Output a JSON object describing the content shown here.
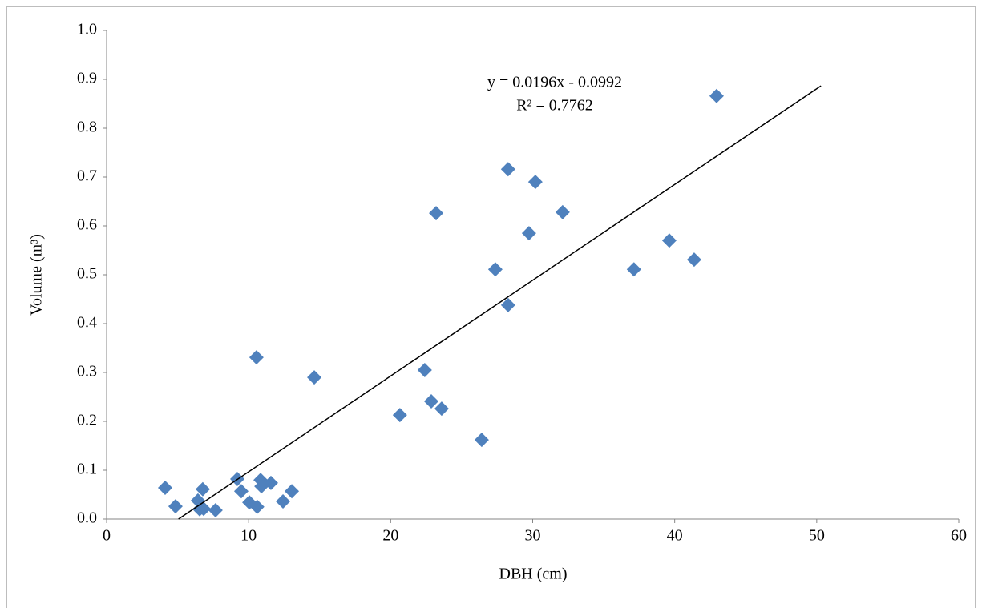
{
  "chart_data": {
    "type": "scatter",
    "xlabel": "DBH (cm)",
    "ylabel": "Volume (m³)",
    "xlim": [
      0,
      60
    ],
    "xticks": [
      0,
      10,
      20,
      30,
      40,
      50,
      60
    ],
    "ylim": [
      0,
      1
    ],
    "yticks": [
      {
        "value": 0,
        "label": "0.0"
      },
      {
        "value": 0.1,
        "label": "0.1"
      },
      {
        "value": 0.2,
        "label": "0.2"
      },
      {
        "value": 0.3,
        "label": "0.3"
      },
      {
        "value": 0.4,
        "label": "0.4"
      },
      {
        "value": 0.5,
        "label": "0.5"
      },
      {
        "value": 0.6,
        "label": "0.6"
      },
      {
        "value": 0.7,
        "label": "0.7"
      },
      {
        "value": 0.8,
        "label": "0.8"
      },
      {
        "value": 0.9,
        "label": "0.9"
      },
      {
        "value": 1,
        "label": "1.0"
      }
    ],
    "grid": false,
    "color": "#4f81bd",
    "x": [
      4.12,
      4.85,
      6.43,
      6.77,
      6.55,
      6.83,
      7.67,
      9.2,
      9.48,
      10.05,
      10.55,
      10.6,
      10.84,
      10.9,
      11.57,
      12.42,
      13.04,
      14.62,
      20.65,
      22.4,
      22.86,
      23.2,
      23.59,
      26.41,
      27.37,
      28.27,
      28.27,
      29.74,
      30.19,
      32.11,
      37.13,
      39.62,
      41.37,
      42.95
    ],
    "values": [
      0.064,
      0.026,
      0.038,
      0.061,
      0.02,
      0.021,
      0.018,
      0.082,
      0.057,
      0.034,
      0.331,
      0.025,
      0.08,
      0.067,
      0.074,
      0.036,
      0.057,
      0.29,
      0.213,
      0.305,
      0.241,
      0.626,
      0.226,
      0.162,
      0.511,
      0.716,
      0.438,
      0.585,
      0.69,
      0.628,
      0.511,
      0.57,
      0.531,
      0.866
    ],
    "trendline": {
      "equation": "y = 0.0196x - 0.0992",
      "r_squared_label": "R² = 0.7762",
      "slope": 0.0196,
      "intercept": -0.0992,
      "x_range": [
        4.12,
        50.3
      ],
      "color": "#000000"
    }
  }
}
